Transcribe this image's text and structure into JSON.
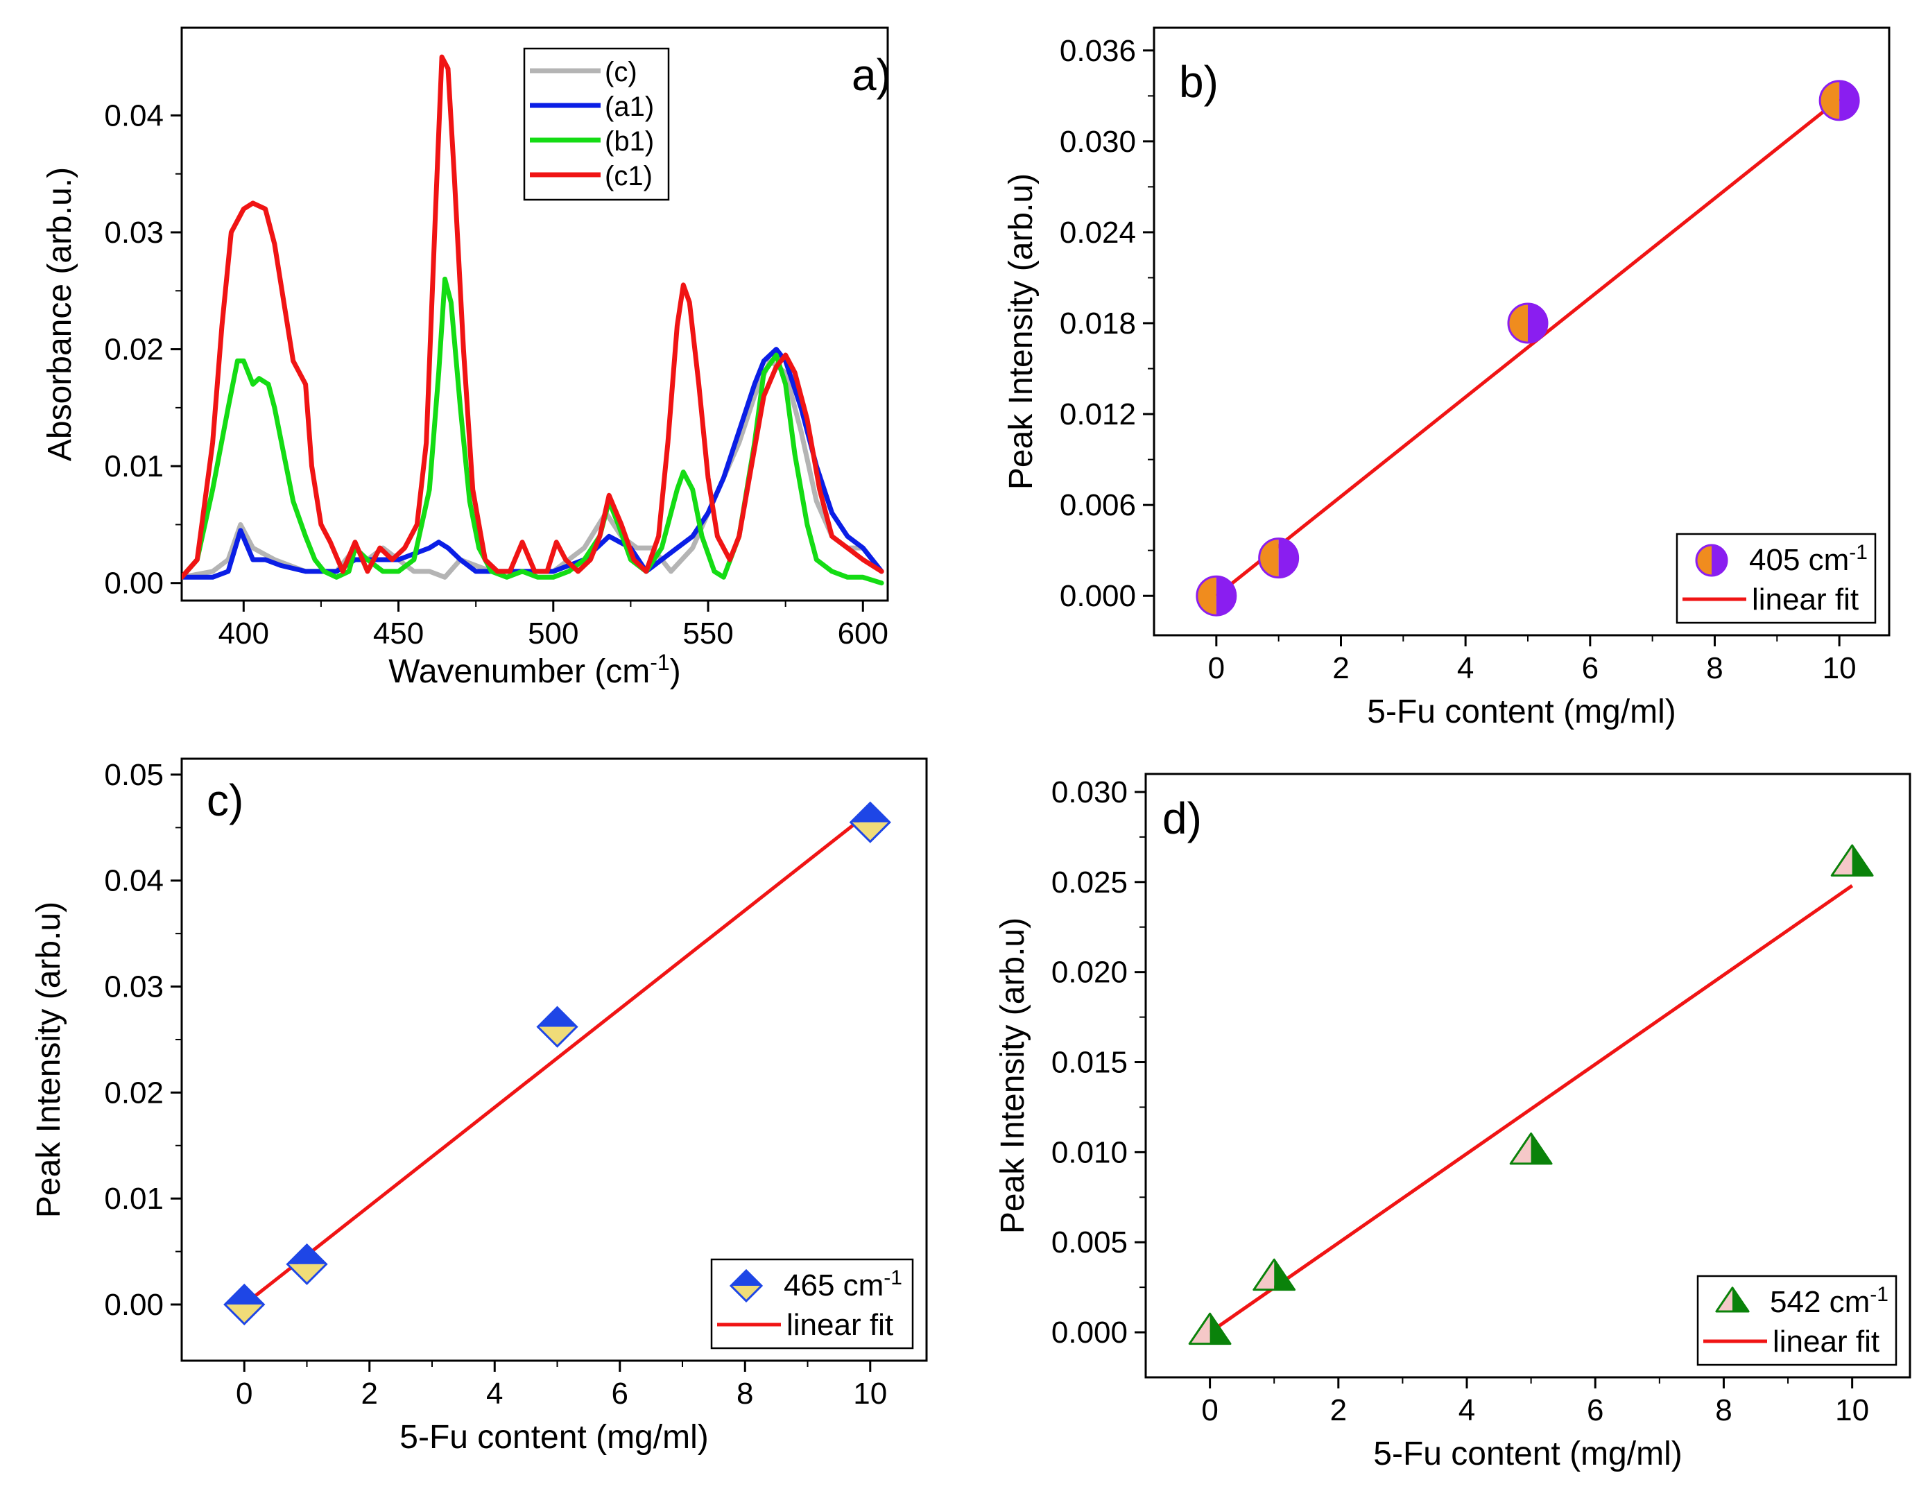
{
  "chart_data": [
    {
      "panel": "a)",
      "type": "line",
      "title": "",
      "xlabel": "Wavenumber (cm",
      "xlabel_sup": "-1",
      "xlabel_end": ")",
      "ylabel": "Absorbance (arb.u.)",
      "xlim": [
        380,
        608
      ],
      "ylim": [
        -0.0015,
        0.0475
      ],
      "xticks": [
        "400",
        "450",
        "500",
        "550",
        "600"
      ],
      "xtick_values": [
        400,
        450,
        500,
        550,
        600
      ],
      "yticks": [
        "0.00",
        "0.01",
        "0.02",
        "0.03",
        "0.04"
      ],
      "ytick_values": [
        0,
        0.01,
        0.02,
        0.03,
        0.04
      ],
      "legend_position": "top-center",
      "series": [
        {
          "name": "(c)",
          "color": "#b4b4b4",
          "x": [
            380,
            390,
            395,
            399,
            403,
            410,
            420,
            430,
            436,
            440,
            445,
            450,
            455,
            460,
            465,
            470,
            480,
            490,
            500,
            510,
            517,
            522,
            527,
            532,
            538,
            545,
            550,
            555,
            560,
            565,
            570,
            575,
            580,
            585,
            590,
            595,
            600,
            606
          ],
          "y": [
            0.0005,
            0.001,
            0.002,
            0.005,
            0.003,
            0.002,
            0.001,
            0.001,
            0.003,
            0.002,
            0.003,
            0.002,
            0.001,
            0.001,
            0.0005,
            0.002,
            0.001,
            0.001,
            0.001,
            0.003,
            0.006,
            0.004,
            0.003,
            0.003,
            0.001,
            0.003,
            0.006,
            0.009,
            0.012,
            0.016,
            0.019,
            0.018,
            0.013,
            0.007,
            0.004,
            0.003,
            0.003,
            0.001
          ]
        },
        {
          "name": "(a1)",
          "color": "#0a1ee6",
          "x": [
            380,
            390,
            395,
            399,
            403,
            407,
            412,
            420,
            430,
            436,
            440,
            445,
            450,
            455,
            460,
            463,
            466,
            470,
            475,
            480,
            490,
            500,
            510,
            518,
            525,
            530,
            535,
            540,
            545,
            550,
            555,
            560,
            565,
            568,
            572,
            575,
            580,
            585,
            590,
            595,
            600,
            606
          ],
          "y": [
            0.0005,
            0.0005,
            0.001,
            0.0045,
            0.002,
            0.002,
            0.0015,
            0.001,
            0.001,
            0.002,
            0.002,
            0.002,
            0.002,
            0.0025,
            0.003,
            0.0035,
            0.003,
            0.002,
            0.001,
            0.001,
            0.001,
            0.001,
            0.002,
            0.004,
            0.003,
            0.001,
            0.002,
            0.003,
            0.004,
            0.006,
            0.009,
            0.013,
            0.017,
            0.019,
            0.02,
            0.019,
            0.015,
            0.01,
            0.006,
            0.004,
            0.003,
            0.001
          ]
        },
        {
          "name": "(b1)",
          "color": "#14dc14",
          "x": [
            380,
            385,
            390,
            395,
            398,
            400,
            403,
            405,
            408,
            410,
            413,
            416,
            420,
            423,
            426,
            430,
            434,
            436,
            440,
            445,
            450,
            455,
            460,
            463,
            465,
            467,
            470,
            473,
            476,
            480,
            485,
            490,
            495,
            500,
            505,
            510,
            515,
            518,
            521,
            525,
            530,
            535,
            540,
            542,
            545,
            548,
            552,
            555,
            560,
            565,
            568,
            572,
            575,
            578,
            582,
            585,
            590,
            595,
            600,
            606
          ],
          "y": [
            0.0005,
            0.002,
            0.008,
            0.015,
            0.019,
            0.019,
            0.017,
            0.0175,
            0.017,
            0.015,
            0.011,
            0.007,
            0.004,
            0.002,
            0.001,
            0.0005,
            0.001,
            0.003,
            0.002,
            0.001,
            0.001,
            0.002,
            0.008,
            0.018,
            0.026,
            0.024,
            0.015,
            0.007,
            0.003,
            0.001,
            0.0005,
            0.001,
            0.0005,
            0.0005,
            0.001,
            0.002,
            0.004,
            0.007,
            0.005,
            0.002,
            0.001,
            0.003,
            0.008,
            0.0095,
            0.008,
            0.004,
            0.001,
            0.0005,
            0.004,
            0.012,
            0.018,
            0.0195,
            0.017,
            0.011,
            0.005,
            0.002,
            0.001,
            0.0005,
            0.0005,
            0
          ]
        },
        {
          "name": "(c1)",
          "color": "#f01414",
          "x": [
            380,
            385,
            390,
            393,
            396,
            400,
            403,
            407,
            410,
            413,
            416,
            420,
            422,
            425,
            428,
            432,
            436,
            440,
            444,
            448,
            452,
            456,
            459,
            462,
            464,
            466,
            468,
            471,
            474,
            478,
            482,
            486,
            490,
            494,
            498,
            501,
            504,
            508,
            512,
            515,
            518,
            522,
            526,
            530,
            534,
            537,
            540,
            542,
            544,
            547,
            550,
            553,
            557,
            560,
            564,
            568,
            572,
            575,
            578,
            582,
            586,
            590,
            595,
            600,
            606
          ],
          "y": [
            0.0005,
            0.002,
            0.012,
            0.022,
            0.03,
            0.032,
            0.0325,
            0.032,
            0.029,
            0.024,
            0.019,
            0.017,
            0.01,
            0.005,
            0.0035,
            0.001,
            0.0035,
            0.001,
            0.003,
            0.002,
            0.003,
            0.005,
            0.012,
            0.032,
            0.045,
            0.044,
            0.035,
            0.02,
            0.008,
            0.002,
            0.001,
            0.001,
            0.0035,
            0.001,
            0.001,
            0.0035,
            0.002,
            0.001,
            0.002,
            0.004,
            0.0075,
            0.005,
            0.002,
            0.001,
            0.004,
            0.012,
            0.022,
            0.0255,
            0.024,
            0.017,
            0.009,
            0.004,
            0.002,
            0.004,
            0.01,
            0.016,
            0.0185,
            0.0195,
            0.018,
            0.014,
            0.008,
            0.004,
            0.003,
            0.002,
            0.001
          ]
        }
      ]
    },
    {
      "panel": "b)",
      "type": "scatter",
      "title": "",
      "xlabel": "5-Fu content (mg/ml)",
      "ylabel": "Peak Intensity (arb.u)",
      "xlim": [
        -1,
        10.8
      ],
      "ylim": [
        -0.0026,
        0.0375
      ],
      "xticks": [
        "0",
        "2",
        "4",
        "6",
        "8",
        "10"
      ],
      "xtick_values": [
        0,
        2,
        4,
        6,
        8,
        10
      ],
      "yticks": [
        "0.000",
        "0.006",
        "0.012",
        "0.018",
        "0.024",
        "0.030",
        "0.036"
      ],
      "ytick_values": [
        0,
        0.006,
        0.012,
        0.018,
        0.024,
        0.03,
        0.036
      ],
      "legend_position": "bottom-right",
      "marker": "circle",
      "marker_colors": [
        "#8a1ef0",
        "#f08c1e"
      ],
      "fit_color": "#f01414",
      "x": [
        0,
        1,
        5,
        10
      ],
      "y": [
        0.0,
        0.0025,
        0.018,
        0.0327
      ],
      "fit": [
        [
          0,
          0.0
        ],
        [
          10,
          0.0328
        ]
      ],
      "legend": [
        {
          "label": "405 cm",
          "sup": "-1"
        },
        {
          "label": "linear fit"
        }
      ]
    },
    {
      "panel": "c)",
      "type": "scatter",
      "title": "",
      "xlabel": "5-Fu content (mg/ml)",
      "ylabel": "Peak Intensity (arb.u)",
      "xlim": [
        -1,
        10.9
      ],
      "ylim": [
        -0.0053,
        0.0515
      ],
      "xticks": [
        "0",
        "2",
        "4",
        "6",
        "8",
        "10"
      ],
      "xtick_values": [
        0,
        2,
        4,
        6,
        8,
        10
      ],
      "yticks": [
        "0.00",
        "0.01",
        "0.02",
        "0.03",
        "0.04",
        "0.05"
      ],
      "ytick_values": [
        0,
        0.01,
        0.02,
        0.03,
        0.04,
        0.05
      ],
      "legend_position": "bottom-right",
      "marker": "diamond",
      "marker_colors": [
        "#1e46e6",
        "#f0dc78"
      ],
      "fit_color": "#f01414",
      "x": [
        0,
        1,
        5,
        10
      ],
      "y": [
        0.0,
        0.0038,
        0.0262,
        0.0455
      ],
      "fit": [
        [
          0,
          0.0
        ],
        [
          10,
          0.0465
        ]
      ],
      "legend": [
        {
          "label": "465 cm",
          "sup": "-1"
        },
        {
          "label": "linear fit"
        }
      ]
    },
    {
      "panel": "d)",
      "type": "scatter",
      "title": "",
      "xlabel": "5-Fu content (mg/ml)",
      "ylabel": "Peak Intensity (arb.u)",
      "xlim": [
        -1,
        10.9
      ],
      "ylim": [
        -0.0025,
        0.031
      ],
      "xticks": [
        "0",
        "2",
        "4",
        "6",
        "8",
        "10"
      ],
      "xtick_values": [
        0,
        2,
        4,
        6,
        8,
        10
      ],
      "yticks": [
        "0.000",
        "0.005",
        "0.010",
        "0.015",
        "0.020",
        "0.025",
        "0.030"
      ],
      "ytick_values": [
        0,
        0.005,
        0.01,
        0.015,
        0.02,
        0.025,
        0.03
      ],
      "legend_position": "bottom-right",
      "marker": "triangle",
      "marker_colors": [
        "#f5c8c8",
        "#0a820a"
      ],
      "fit_color": "#f01414",
      "x": [
        0,
        1,
        5,
        10
      ],
      "y": [
        0.0,
        0.003,
        0.01,
        0.026
      ],
      "fit": [
        [
          0,
          0.0
        ],
        [
          10,
          0.0248
        ]
      ],
      "legend": [
        {
          "label": "542 cm",
          "sup": "-1"
        },
        {
          "label": "linear fit"
        }
      ]
    }
  ]
}
